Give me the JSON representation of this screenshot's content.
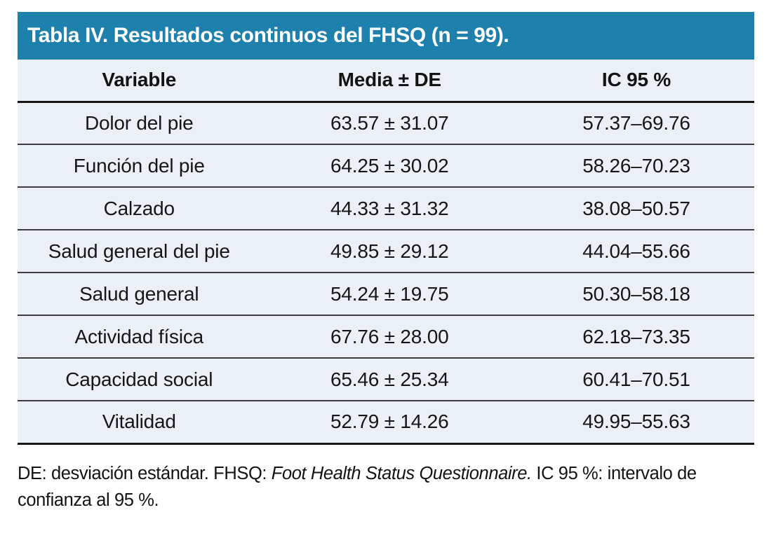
{
  "title": "Tabla IV. Resultados continuos del FHSQ (n = 99).",
  "colors": {
    "title_bar_bg": "#1E80AD",
    "title_text": "#FFFFFF",
    "row_bg": "#EBEFF6",
    "divider": "#3C3C3C",
    "strong_divider": "#161616",
    "body_text": "#161616"
  },
  "table": {
    "columns": [
      "Variable",
      "Media ± DE",
      "IC 95 %"
    ],
    "rows": [
      {
        "variable": "Dolor del pie",
        "media_de": "63.57 ± 31.07",
        "ic95": "57.37–69.76"
      },
      {
        "variable": "Función del pie",
        "media_de": "64.25 ± 30.02",
        "ic95": "58.26–70.23"
      },
      {
        "variable": "Calzado",
        "media_de": "44.33 ± 31.32",
        "ic95": "38.08–50.57"
      },
      {
        "variable": "Salud general del pie",
        "media_de": "49.85 ± 29.12",
        "ic95": "44.04–55.66"
      },
      {
        "variable": "Salud general",
        "media_de": "54.24 ± 19.75",
        "ic95": "50.30–58.18"
      },
      {
        "variable": "Actividad física",
        "media_de": "67.76 ± 28.00",
        "ic95": "62.18–73.35"
      },
      {
        "variable": "Capacidad social",
        "media_de": "65.46 ± 25.34",
        "ic95": "60.41–70.51"
      },
      {
        "variable": "Vitalidad",
        "media_de": "52.79 ± 14.26",
        "ic95": "49.95–55.63"
      }
    ]
  },
  "footnote": {
    "part1": "DE: desviación estándar. FHSQ: ",
    "italic": "Foot Health Status Questionnaire.",
    "part2": " IC 95 %: intervalo de confianza al 95 %."
  }
}
